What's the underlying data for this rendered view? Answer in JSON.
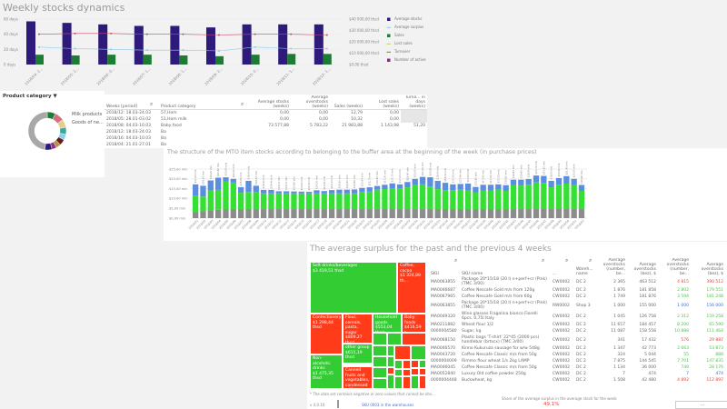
{
  "weekly": {
    "title": "Weekly stocks dynamics",
    "left_axis": [
      "60 days",
      "40 days",
      "20 days",
      "0 days"
    ],
    "right_axis": [
      "$40 000,00 thsd",
      "$30 000,00 thsd",
      "$20 000,00 thsd",
      "$10 000,00 thsd",
      "$0,00 thsd"
    ],
    "legend": [
      {
        "label": "Average stocks",
        "color": "#2e1a7a",
        "shape": "square"
      },
      {
        "label": "Average surplus",
        "color": "#8ecbe8",
        "shape": "line"
      },
      {
        "label": "Sales",
        "color": "#1e7b34",
        "shape": "square"
      },
      {
        "label": "Lost sales",
        "color": "#c8d84a",
        "shape": "line"
      },
      {
        "label": "Turnover",
        "color": "#c0506a",
        "shape": "line"
      },
      {
        "label": "Number of active weeks",
        "color": "#8a2b8a",
        "shape": "square"
      }
    ],
    "categories": [
      "2018/04: 2...",
      "2018/05: 2...",
      "2018/06: 0...",
      "2018/07: 1...",
      "2018/08: 1...",
      "2018/09: 2...",
      "2018/10: 0...",
      "2018/11: 1...",
      "2018/12: 1..."
    ],
    "average_stocks_days": [
      57,
      55,
      53,
      51,
      51,
      49,
      53,
      53,
      53
    ],
    "sales_days": [
      13,
      12,
      13,
      13,
      12,
      11,
      13,
      14,
      14
    ],
    "average_surplus_days": [
      23,
      21,
      20,
      19,
      19,
      18,
      23,
      21,
      21
    ],
    "turnover_days": [
      40,
      41,
      41,
      40,
      40,
      39,
      40,
      40,
      39
    ]
  },
  "filter": {
    "label": "Product category",
    "icon": "filter-icon"
  },
  "donut": {
    "labels": [
      "Milk products",
      "Goods of ne..."
    ],
    "slices": [
      {
        "value": 7,
        "color": "#1e7b34"
      },
      {
        "value": 8,
        "color": "#d4707e"
      },
      {
        "value": 7,
        "color": "#e2cf8a"
      },
      {
        "value": 6,
        "color": "#3aa89a"
      },
      {
        "value": 5,
        "color": "#86d3e8"
      },
      {
        "value": 5,
        "color": "#6b1a1a"
      },
      {
        "value": 4,
        "color": "#a89a3a"
      },
      {
        "value": 4,
        "color": "#9a2b8a"
      },
      {
        "value": 6,
        "color": "#2e1a7a"
      },
      {
        "value": 48,
        "color": "#a8a8a8"
      }
    ]
  },
  "summary_table": {
    "headers": [
      "Weeks [period]",
      "Product category",
      "Average stocks (weeks)",
      "Average overstocks (weeks)",
      "Sales (weeks)",
      "Lost sales (weeks)",
      "Turno... in days (weeks)"
    ],
    "rows": [
      [
        "2018/12: 18.03-24.03",
        "57,Hom",
        "0,00",
        "0,00",
        "12,79",
        "0,00",
        ""
      ],
      [
        "2018/05: 28.01-03.02",
        "51,Hom milk",
        "0,00",
        "0,00",
        "10,32",
        "0,00",
        ""
      ],
      [
        "2018/08: 04.03-10.03",
        "Baby food",
        "73 577,88",
        "5 783,22",
        "21 983,88",
        "1 143,98",
        "51,20"
      ],
      [
        "2018/12: 18.03-24.03",
        "Ba",
        "",
        "",
        "",
        "",
        ""
      ],
      [
        "2018/16: 04.03-10.03",
        "Ba",
        "",
        "",
        "",
        "",
        ""
      ],
      [
        "2018/04: 21.01-27.01",
        "Ba",
        "",
        "",
        "",
        "",
        ""
      ]
    ]
  },
  "chart_data": {
    "type": "bar",
    "stacked": true,
    "title": "The structure of the MTO item stocks according to belonging to the buffer area at the beginning of the week (in purchase prices)",
    "ylim": [
      0,
      25
    ],
    "y_ticks": [
      "$0,00 mln",
      "$5,00 mln",
      "$10,00 mln",
      "$15,00 mln",
      "$20,00 mln",
      "$25,00 mln"
    ],
    "grid": true,
    "categories": [
      "2018/01",
      "2018/02",
      "2018/03",
      "2018/04",
      "2018/05",
      "2018/06",
      "2018/07",
      "2018/08",
      "2018/09",
      "2018/10",
      "2018/11",
      "2018/12",
      "2018/13",
      "2018/14",
      "2018/15",
      "2018/16",
      "2018/17",
      "2018/18",
      "2018/19",
      "2018/20",
      "2018/21",
      "2018/22",
      "2018/23",
      "2018/24",
      "2018/25",
      "2018/26",
      "2018/27",
      "2018/28",
      "2018/29",
      "2018/30",
      "2018/31",
      "2018/32",
      "2018/33",
      "2018/34",
      "2018/35",
      "2018/36",
      "2018/37",
      "2018/38",
      "2018/39",
      "2018/40",
      "2018/41",
      "2018/42",
      "2018/43",
      "2018/44",
      "2018/45",
      "2018/46",
      "2018/47",
      "2018/48",
      "2018/49",
      "2018/50",
      "2018/51",
      "2018/52"
    ],
    "series": [
      {
        "color": "#8c8c8c",
        "values": [
          3.2,
          3.5,
          4.1,
          4.3,
          4.4,
          4.4,
          4.4,
          4.4,
          4.6,
          4.6,
          4.6,
          4.6,
          4.6,
          4.6,
          4.6,
          4.6,
          4.6,
          4.6,
          4.6,
          4.6,
          4.6,
          4.6,
          4.6,
          4.6,
          4.6,
          4.6,
          4.6,
          4.6,
          4.6,
          4.6,
          4.6,
          4.6,
          4.4,
          4.4,
          4.4,
          4.4,
          4.4,
          4.4,
          4.4,
          4.4,
          4.4,
          4.4,
          4.6,
          4.6,
          4.6,
          5.0,
          5.0,
          4.8,
          5.0,
          5.0,
          4.8,
          4.6
        ]
      },
      {
        "color": "#33e033",
        "values": [
          8.2,
          7.5,
          9.9,
          10.1,
          14.2,
          13.7,
          8.5,
          8.9,
          8.7,
          8.0,
          8.0,
          8.0,
          8.0,
          8.0,
          8.0,
          8.0,
          8.0,
          8.0,
          8.0,
          8.0,
          8.0,
          8.0,
          8.7,
          8.9,
          9.9,
          10.2,
          10.5,
          10.5,
          11.1,
          12.2,
          12.6,
          11.5,
          10.4,
          9.9,
          9.9,
          10.1,
          9.6,
          8.8,
          9.7,
          9.7,
          10.2,
          9.5,
          12.3,
          12.0,
          12.4,
          13.2,
          12.9,
          10.9,
          12.0,
          12.6,
          12.0,
          9.3
        ]
      },
      {
        "color": "#5b8de0",
        "values": [
          5.8,
          5.5,
          5.2,
          6.2,
          2.2,
          1.9,
          2.9,
          5.7,
          3.2,
          1.8,
          1.8,
          1.1,
          1.1,
          1.0,
          0.9,
          0.8,
          1.6,
          1.2,
          1.7,
          1.9,
          1.9,
          2.0,
          2.1,
          2.2,
          1.9,
          2.2,
          2.6,
          2.1,
          2.7,
          3.2,
          3.8,
          4.7,
          4.2,
          3.7,
          2.9,
          2.9,
          3.6,
          2.7,
          2.9,
          2.9,
          2.6,
          2.9,
          2.7,
          3.0,
          2.9,
          3.5,
          3.6,
          3.3,
          3.4,
          3.8,
          3.2,
          3.0
        ]
      }
    ]
  },
  "treemap": {
    "title": "The average surplus for the past and the previous 4 weeks",
    "tiles": [
      {
        "label": "Soft drinks/beverages",
        "value": "$3 419,51 thsd",
        "color": "#33cc33"
      },
      {
        "label": "Coffee, cocoa",
        "value": "$1 324,89 th...",
        "color": "#ff3b1a"
      },
      {
        "label": "Confectionery",
        "value": "$1 298,44 thsd",
        "color": "#ff3b1a"
      },
      {
        "label": "Flour, cereals, pasta, sugar",
        "value": "$809,27 thsd",
        "color": "#ff3b1a"
      },
      {
        "label": "Household goods",
        "value": "$553,04 thsd",
        "color": "#33cc33"
      },
      {
        "label": "Baby foods",
        "value": "$416,59 t...",
        "color": "#ff3b1a"
      },
      {
        "label": "other group",
        "value": "$615,19 thsd",
        "color": "#33cc33"
      },
      {
        "label": "Non-alcoholic drinks",
        "value": "$1 475,35 thsd",
        "color": "#33cc33"
      },
      {
        "label": "Canned fruits and vegetables, condensed milk",
        "value": "$503,09 thsd",
        "color": "#ff3b1a"
      }
    ],
    "footnote": "* The data set contains negative or zero values that cannot be sho...",
    "version": "v 4.0.10",
    "link": "SKU 0003 in the warehouses"
  },
  "sku_table": {
    "headers": [
      "SKU",
      "SKU name",
      "...",
      "Wareh... name",
      "Average overstocks (number, be...",
      "Average overstocks (bez), $",
      "Average overstocks (number, be...",
      "Average overstocks (bez), $",
      "Avera... overst... (number, ..."
    ],
    "rows": [
      {
        "cells": [
          "MA0063855",
          "Package 20*15/18 (20 l) n+perf+cr (Pink) (TMC 3/00)",
          "CW0002",
          "DC 2",
          "2 365",
          "463 512",
          "4 815",
          "390 512",
          "20 2"
        ],
        "status": "#e8403a"
      },
      {
        "cells": [
          "MA0046687",
          "Coffee Nescafe Gold m/s from 120g",
          "CW0002",
          "DC 2",
          "1 876",
          "181 858",
          "2 802",
          "179 551",
          "1 8"
        ],
        "status": "#4ac44a"
      },
      {
        "cells": [
          "MA0067965",
          "Coffee Nescafe Gold m/s from 60g",
          "CW0002",
          "DC 2",
          "1 749",
          "181 876",
          "3 594",
          "181 248",
          "7 5"
        ],
        "status": "#4ac44a"
      },
      {
        "cells": [
          "MA0063855",
          "Package 20*15/18 (20 l) n+perf+cr (Pink) (TMC 3/00)",
          "RW0002",
          "Shop 3",
          "1 000",
          "155 000",
          "1 000",
          "156 000",
          "1 0"
        ],
        "status": "#3a6fe0"
      },
      {
        "cells": [
          "MA0049320",
          "Wine glasses Fragolina bianco Fiorelli 6pcs. 0,75l Italy",
          "CW0002",
          "DC 2",
          "1 045",
          "126 758",
          "2 312",
          "159 258",
          "2 3"
        ],
        "status": "#4ac44a"
      },
      {
        "cells": [
          "MA0211882",
          "Wheat flour 1/2",
          "CW0002",
          "DC 2",
          "11 657",
          "184 457",
          "8 200",
          "65 590",
          "4 1"
        ],
        "status": "#4ac44a"
      },
      {
        "cells": [
          "0000004580",
          "Sugar, kg",
          "CW0002",
          "DC 2",
          "11 087",
          "158 558",
          "10 888",
          "111 464",
          "1 7"
        ],
        "status": "#4ac44a"
      },
      {
        "cells": [
          "MA0068150",
          "Plastic bags 'T-shirt' 22*45 (2000 pcs) handlebar (brtscx) (TMC 3/00)",
          "CW0002",
          "DC 2",
          "341",
          "17 432",
          "576",
          "29 887",
          "5"
        ],
        "status": "#e8403a"
      },
      {
        "cells": [
          "MA0046570",
          "Kinno Kukuruza sausage for w/w 548g",
          "CW0002",
          "DC 2",
          "1 347",
          "42 773",
          "2 663",
          "53 873",
          "2"
        ],
        "status": "#4ac44a"
      },
      {
        "cells": [
          "MA0043720",
          "Coffee Nescafe Classic m/s from 50g",
          "CW0002",
          "DC 2",
          "324",
          "5 044",
          "55",
          "888",
          "2 0"
        ],
        "status": "#4ac44a"
      },
      {
        "cells": [
          "0000004009",
          "Rimmo flour wheat 1/s 2kg LAMP",
          "CW0002",
          "DC 2",
          "7 875",
          "144 545",
          "7 701",
          "147 835",
          "7 5"
        ],
        "status": "#4ac44a"
      },
      {
        "cells": [
          "MA0046045",
          "Coffee Nescafe Classic m/s from 50g",
          "CW0002",
          "DC 2",
          "1 134",
          "36 000",
          "748",
          "28 176",
          "2"
        ],
        "status": "#4ac44a"
      },
      {
        "cells": [
          "MA0052840",
          "Luxury Old coffee powder 250g",
          "CW0002",
          "DC 2",
          "7",
          "474",
          "7",
          "474",
          ""
        ],
        "status": "#3a6fe0"
      },
      {
        "cells": [
          "0000004448",
          "Buckwheat, kg",
          "CW0002",
          "DC 2",
          "1 508",
          "42 480",
          "4 892",
          "112 897",
          "1 3"
        ],
        "status": "#e8403a"
      }
    ],
    "share_label": "Share of the average surplus in the average stock for the week",
    "share_value": "49,1%",
    "more_button": "..."
  }
}
